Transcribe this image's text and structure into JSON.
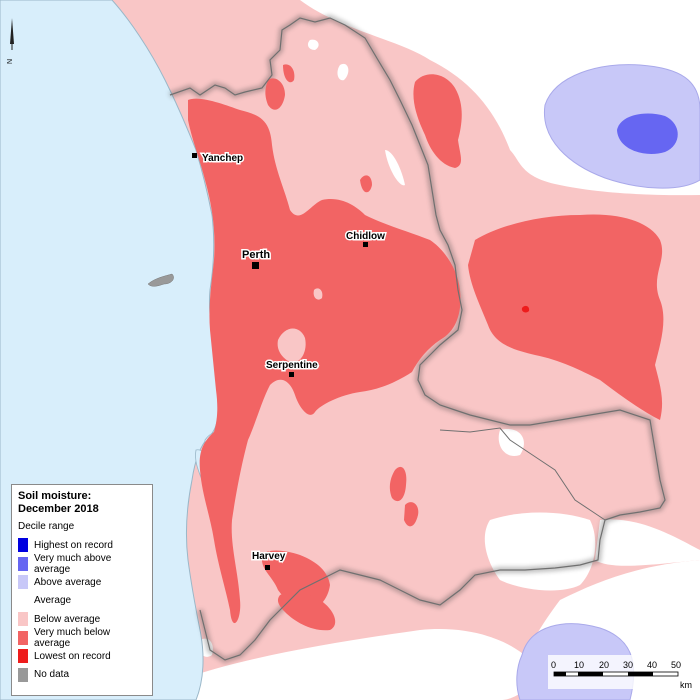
{
  "towns": {
    "yanchep": "Yanchep",
    "perth": "Perth",
    "chidlow": "Chidlow",
    "serpentine": "Serpentine",
    "harvey": "Harvey"
  },
  "north_arrow": {
    "label": "N"
  },
  "legend": {
    "title_line1": "Soil moisture:",
    "title_line2": "December 2018",
    "subtitle": "Decile range",
    "items": [
      {
        "label": "Highest on record",
        "color": "#0000e0"
      },
      {
        "label": "Very much above average",
        "color": "#6666f2"
      },
      {
        "label": "Above average",
        "color": "#c8c8f8"
      },
      {
        "label": "Average",
        "color": "#ffffff"
      },
      {
        "label": "Below average",
        "color": "#f9c6c6"
      },
      {
        "label": "Very much below average",
        "color": "#f26464"
      },
      {
        "label": "Lowest on record",
        "color": "#ee1c1c"
      },
      {
        "label": "No data",
        "color": "#999999"
      }
    ]
  },
  "scale_bar": {
    "ticks": [
      "0",
      "10",
      "20",
      "30",
      "40",
      "50"
    ],
    "unit": "km"
  },
  "colors": {
    "ocean": "#d8eefb",
    "below_average": "#f9c6c6",
    "very_much_below": "#f26464",
    "above_average": "#c8c8f8",
    "very_much_above": "#6666f2",
    "lowest_on_record": "#ee1c1c",
    "no_data": "#999999"
  }
}
